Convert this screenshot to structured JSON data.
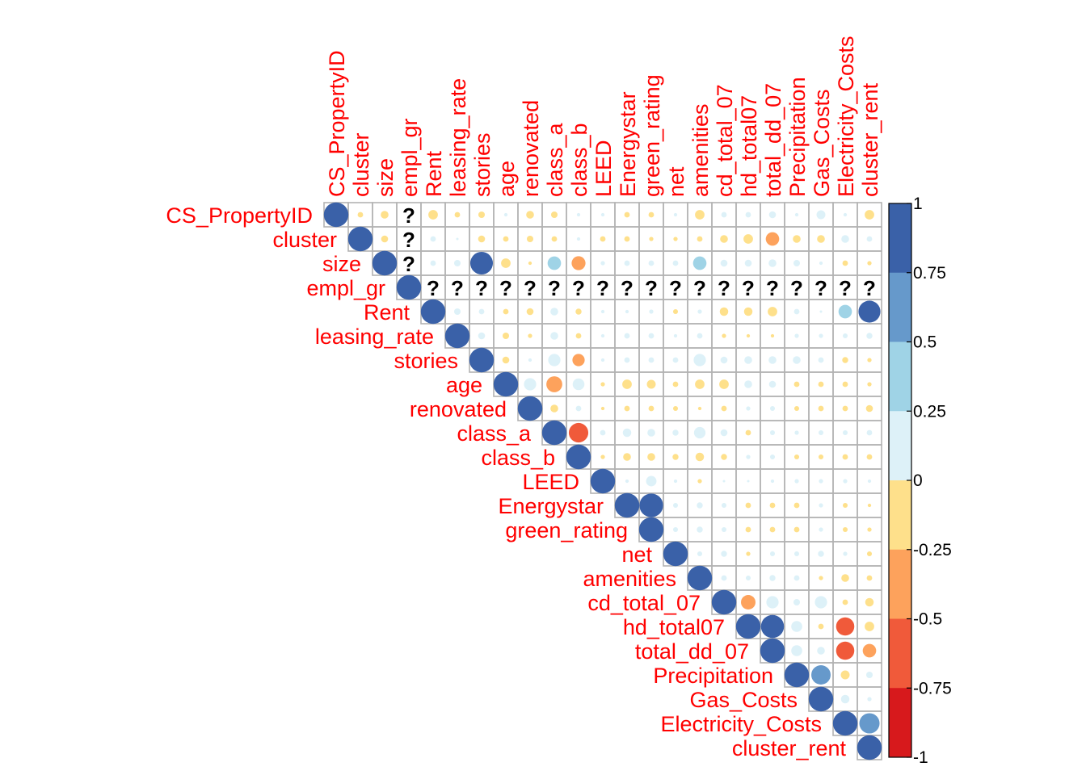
{
  "chart_data": {
    "type": "heatmap",
    "variables": [
      "CS_PropertyID",
      "cluster",
      "size",
      "empl_gr",
      "Rent",
      "leasing_rate",
      "stories",
      "age",
      "renovated",
      "class_a",
      "class_b",
      "LEED",
      "Energystar",
      "green_rating",
      "net",
      "amenities",
      "cd_total_07",
      "hd_total07",
      "total_dd_07",
      "Precipitation",
      "Gas_Costs",
      "Electricity_Costs",
      "cluster_rent"
    ],
    "layout": "upper",
    "missing_marker": "?",
    "missing_variable": "empl_gr",
    "correlations": [
      [
        1,
        -0.05,
        -0.1,
        null,
        -0.15,
        -0.05,
        -0.07,
        0.02,
        -0.1,
        -0.07,
        0.02,
        0.02,
        -0.05,
        -0.05,
        0.02,
        -0.15,
        0.05,
        0.05,
        0.08,
        0.02,
        0.13,
        0.02,
        -0.15
      ],
      [
        1,
        -0.08,
        null,
        0.05,
        0.01,
        -0.08,
        -0.05,
        -0.07,
        -0.05,
        0.02,
        -0.05,
        -0.05,
        -0.03,
        -0.03,
        -0.05,
        -0.1,
        -0.15,
        -0.3,
        -0.1,
        -0.1,
        0.1,
        0.05
      ],
      [
        1,
        null,
        0.05,
        0.07,
        0.85,
        -0.15,
        -0.02,
        0.3,
        -0.32,
        0.03,
        0.05,
        0.05,
        0.05,
        0.3,
        0.08,
        0.08,
        0.1,
        0.07,
        0.02,
        -0.05,
        -0.03
      ],
      [
        1,
        null,
        null,
        null,
        null,
        null,
        null,
        null,
        null,
        null,
        null,
        null,
        null,
        null,
        null,
        null,
        null,
        null,
        null,
        null
      ],
      [
        1,
        0.07,
        0.05,
        -0.05,
        -0.08,
        0.1,
        -0.06,
        0.02,
        0.02,
        0.03,
        -0.04,
        0.03,
        -0.12,
        -0.12,
        -0.15,
        0.05,
        0.01,
        0.3,
        0.8
      ],
      [
        1,
        0.08,
        -0.07,
        -0.03,
        0.1,
        -0.05,
        0.02,
        0.05,
        0.05,
        0.02,
        0.05,
        -0.03,
        -0.02,
        -0.02,
        0.03,
        0.03,
        0.04,
        0.06
      ],
      [
        1,
        -0.08,
        0.02,
        0.25,
        -0.25,
        0.02,
        0.05,
        0.05,
        0.05,
        0.25,
        0.08,
        0.1,
        0.1,
        0.1,
        0.05,
        -0.06,
        -0.03
      ],
      [
        1,
        0.25,
        -0.42,
        0.23,
        -0.03,
        -0.15,
        -0.13,
        -0.05,
        -0.15,
        -0.15,
        0.1,
        0.08,
        -0.05,
        -0.05,
        -0.05,
        -0.03
      ],
      [
        1,
        -0.1,
        0.05,
        -0.02,
        -0.05,
        -0.05,
        -0.04,
        -0.02,
        -0.05,
        0.03,
        0.04,
        -0.04,
        -0.05,
        -0.05,
        -0.08
      ],
      [
        1,
        -0.63,
        0.05,
        0.12,
        0.1,
        0.06,
        0.22,
        0.08,
        -0.05,
        0.04,
        0.03,
        0.04,
        0.04,
        0.05
      ],
      [
        1,
        -0.03,
        -0.1,
        -0.1,
        -0.06,
        -0.12,
        -0.06,
        0.03,
        0.04,
        -0.04,
        -0.04,
        -0.05,
        -0.05
      ],
      [
        1,
        0.02,
        0.18,
        0.02,
        -0.03,
        0.01,
        0.01,
        0.02,
        0.03,
        0.03,
        0.03,
        0.02
      ],
      [
        1,
        0.93,
        0.04,
        0.06,
        0.04,
        -0.05,
        -0.05,
        -0.05,
        0.03,
        -0.04,
        -0.02
      ],
      [
        1,
        0.04,
        0.06,
        0.04,
        -0.05,
        -0.05,
        -0.05,
        0.03,
        -0.04,
        -0.03
      ],
      [
        1,
        0.04,
        0.06,
        -0.03,
        0.04,
        0.04,
        0.06,
        0.03,
        -0.04
      ],
      [
        1,
        0.05,
        0.04,
        0.06,
        0.05,
        -0.03,
        -0.1,
        -0.05
      ],
      [
        1,
        -0.35,
        0.25,
        0.07,
        0.25,
        -0.05,
        -0.12
      ],
      [
        1,
        0.88,
        0.2,
        -0.05,
        -0.55,
        -0.15
      ],
      [
        1,
        0.2,
        0.1,
        -0.55,
        -0.3
      ],
      [
        1,
        0.62,
        -0.13,
        0.07
      ],
      [
        1,
        0.12,
        0.03
      ],
      [
        1,
        0.68
      ],
      [
        1
      ]
    ],
    "colorbar": {
      "ticks": [
        "1",
        "0.75",
        "0.5",
        "0.25",
        "0",
        "-0.25",
        "-0.5",
        "-0.75",
        "-1"
      ],
      "bins_top_to_bottom": [
        "#3A61A8",
        "#6699CB",
        "#9FD3E6",
        "#DDF1F8",
        "#FEE08B",
        "#FDA25C",
        "#F05A3A",
        "#D7191C"
      ]
    },
    "label_color": "#ff0000",
    "grid_color": "#b3b3b3"
  }
}
